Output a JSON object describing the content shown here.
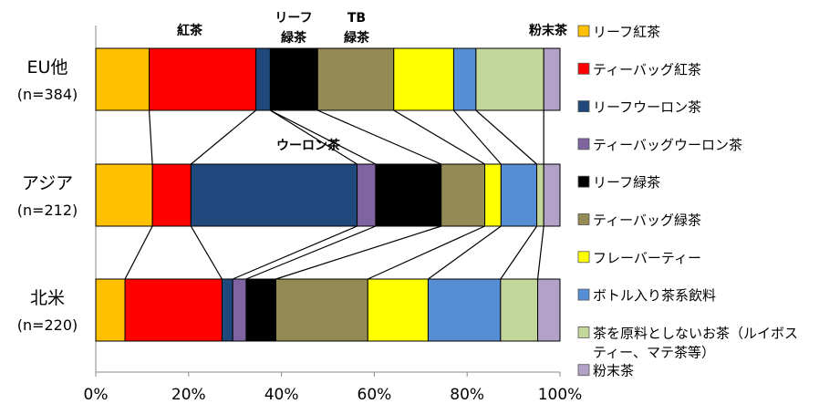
{
  "chart_data": {
    "type": "bar",
    "stacked": true,
    "orientation": "horizontal",
    "title": "",
    "xlabel": "",
    "ylabel": "",
    "xlim": [
      0,
      100
    ],
    "x_tick_labels": [
      "0%",
      "20%",
      "40%",
      "60%",
      "80%",
      "100%"
    ],
    "categories": [
      {
        "name": "EU他",
        "n": "(n=384)"
      },
      {
        "name": "アジア",
        "n": "(n=212)"
      },
      {
        "name": "北米",
        "n": "(n=220)"
      }
    ],
    "series": [
      {
        "name": "リーフ紅茶",
        "color": "#FFC000",
        "values": [
          11.5,
          12.2,
          6.3
        ]
      },
      {
        "name": "ティーバッグ紅茶",
        "color": "#FF0000",
        "values": [
          23.0,
          8.3,
          20.9
        ]
      },
      {
        "name": "リーフウーロン茶",
        "color": "#1F497D",
        "values": [
          3.1,
          35.8,
          2.3
        ]
      },
      {
        "name": "ティーバッグウーロン茶",
        "color": "#8064A2",
        "values": [
          0.0,
          4.0,
          2.9
        ]
      },
      {
        "name": "リーフ緑茶",
        "color": "#000000",
        "values": [
          10.2,
          14.1,
          6.4
        ]
      },
      {
        "name": "ティーバッグ緑茶",
        "color": "#948A54",
        "values": [
          16.4,
          9.4,
          19.8
        ]
      },
      {
        "name": "フレーバーティー",
        "color": "#FFFF00",
        "values": [
          12.9,
          3.5,
          13.0
        ]
      },
      {
        "name": "ボトル入り茶系飲料",
        "color": "#558ED5",
        "values": [
          4.8,
          7.7,
          15.6
        ]
      },
      {
        "name": "茶を原料としないお茶（ルイボスティー、マテ茶等）",
        "color": "#C3D69B",
        "values": [
          14.6,
          1.5,
          8.0
        ]
      },
      {
        "name": "粉末茶",
        "color": "#B3A2C7",
        "values": [
          3.5,
          3.5,
          4.8
        ]
      }
    ],
    "legend": {
      "position": "right",
      "lines": [
        [
          "リーフ紅茶"
        ],
        [
          "ティーバッグ紅茶"
        ],
        [
          "リーフウーロン茶"
        ],
        [
          "ティーバッグウーロン茶"
        ],
        [
          "リーフ緑茶"
        ],
        [
          "ティーバッグ緑茶"
        ],
        [
          "フレーバーティー"
        ],
        [
          "ボトル入り茶系飲料"
        ],
        [
          "茶を原料としないお茶（ルイボス",
          "ティー、マテ茶等）"
        ],
        [
          "粉末茶"
        ]
      ]
    },
    "annotations": [
      {
        "lines": [
          "紅茶"
        ]
      },
      {
        "lines": [
          "リーフ",
          "緑茶"
        ]
      },
      {
        "lines": [
          "TB",
          "緑茶"
        ]
      },
      {
        "lines": [
          "粉末茶"
        ]
      },
      {
        "lines": [
          "ウーロン茶"
        ]
      }
    ],
    "grid": false
  }
}
